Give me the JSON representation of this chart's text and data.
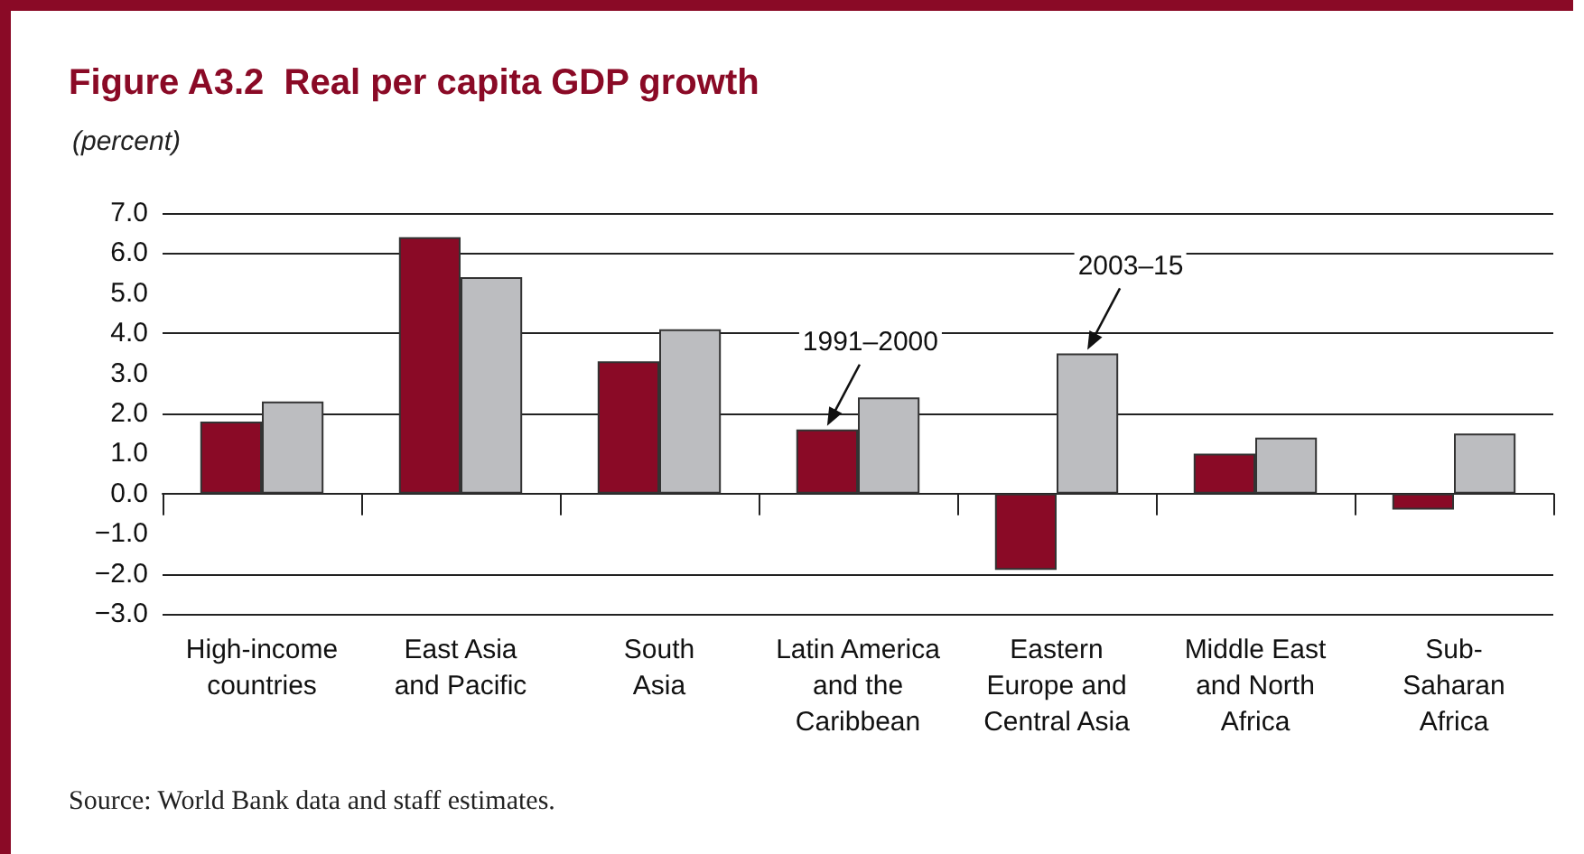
{
  "chart_data": {
    "type": "bar",
    "title": "Figure A3.2  Real per capita GDP growth",
    "subtitle": "(percent)",
    "categories": [
      "High-income\ncountries",
      "East Asia\nand Pacific",
      "South\nAsia",
      "Latin America\nand the\nCaribbean",
      "Eastern\nEurope and\nCentral Asia",
      "Middle East\nand North\nAfrica",
      "Sub-\nSaharan\nAfrica"
    ],
    "series": [
      {
        "color": "#8a0a26",
        "values": [
          1.8,
          6.4,
          3.3,
          1.6,
          -1.9,
          1.0,
          -0.4
        ]
      },
      {
        "color": "#bcbdc0",
        "values": [
          2.3,
          5.4,
          4.1,
          2.4,
          3.5,
          1.4,
          1.5
        ]
      }
    ],
    "ylim": [
      -3,
      7
    ],
    "yticks": [
      {
        "value": -3,
        "label": "−3.0"
      },
      {
        "value": -2,
        "label": "−2.0"
      },
      {
        "value": -1,
        "label": "−1.0"
      },
      {
        "value": 0,
        "label": "0.0"
      },
      {
        "value": 1,
        "label": "1.0"
      },
      {
        "value": 2,
        "label": "2.0"
      },
      {
        "value": 3,
        "label": "3.0"
      },
      {
        "value": 4,
        "label": "4.0"
      },
      {
        "value": 5,
        "label": "5.0"
      },
      {
        "value": 6,
        "label": "6.0"
      },
      {
        "value": 7,
        "label": "7.0"
      }
    ],
    "grid": "y",
    "annotations": [
      {
        "text": "1991–2000",
        "x": "Latin America\nand the\nCaribbean",
        "y": 1.6
      },
      {
        "text": "2003–15",
        "x": "Eastern\nEurope and\nCentral Asia",
        "y": 3.5
      },
      "Source: World Bank data and staff estimates."
    ]
  }
}
